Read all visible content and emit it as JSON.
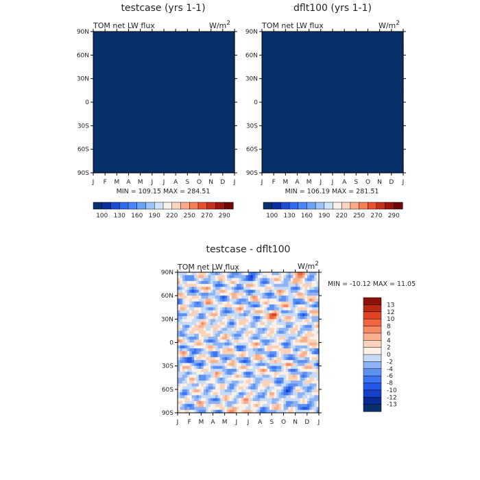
{
  "chart_data": [
    {
      "type": "heatmap",
      "title": "testcase (yrs 1-1)",
      "left_label": "TOM net LW flux",
      "units": "W/m",
      "units_exponent": "2",
      "x_ticks": [
        "J",
        "F",
        "M",
        "A",
        "M",
        "J",
        "J",
        "A",
        "S",
        "O",
        "N",
        "D",
        "J"
      ],
      "y_ticks": [
        "90N",
        "60N",
        "30N",
        "0",
        "30S",
        "60S",
        "90S"
      ],
      "xlim": [
        0,
        12
      ],
      "ylim": [
        -90,
        90
      ],
      "stats_text": "MIN = 109.15 MAX = 284.51",
      "min": 109.15,
      "max": 284.51,
      "levels": [
        100,
        115,
        130,
        145,
        160,
        175,
        190,
        205,
        220,
        235,
        250,
        265,
        270,
        285,
        290
      ],
      "colorbar_labels": [
        "100",
        "130",
        "160",
        "190",
        "220",
        "250",
        "270",
        "290"
      ],
      "colors": [
        "#08306b",
        "#0b2f9f",
        "#1d4cd3",
        "#2f6af0",
        "#4a86f5",
        "#6aa2f6",
        "#9cc3f7",
        "#cfe2fa",
        "#f7f0e8",
        "#fbd4bd",
        "#f9aa86",
        "#f47e55",
        "#e8512e",
        "#c6301c",
        "#9a1510",
        "#6d0a07"
      ]
    },
    {
      "type": "heatmap",
      "title": "dflt100 (yrs 1-1)",
      "left_label": "TOM net LW flux",
      "units": "W/m",
      "units_exponent": "2",
      "x_ticks": [
        "J",
        "F",
        "M",
        "A",
        "M",
        "J",
        "J",
        "A",
        "S",
        "O",
        "N",
        "D",
        "J"
      ],
      "y_ticks": [
        "90N",
        "60N",
        "30N",
        "0",
        "30S",
        "60S",
        "90S"
      ],
      "xlim": [
        0,
        12
      ],
      "ylim": [
        -90,
        90
      ],
      "stats_text": "MIN = 106.19 MAX = 281.51",
      "min": 106.19,
      "max": 281.51,
      "levels": [
        100,
        115,
        130,
        145,
        160,
        175,
        190,
        205,
        220,
        235,
        250,
        265,
        270,
        285,
        290
      ],
      "colorbar_labels": [
        "100",
        "130",
        "160",
        "190",
        "220",
        "250",
        "270",
        "290"
      ],
      "colors": [
        "#08306b",
        "#0b2f9f",
        "#1d4cd3",
        "#2f6af0",
        "#4a86f5",
        "#6aa2f6",
        "#9cc3f7",
        "#cfe2fa",
        "#f7f0e8",
        "#fbd4bd",
        "#f9aa86",
        "#f47e55",
        "#e8512e",
        "#c6301c",
        "#9a1510",
        "#6d0a07"
      ]
    },
    {
      "type": "heatmap",
      "title": "testcase - dflt100",
      "left_label": "TOM net LW flux",
      "units": "W/m",
      "units_exponent": "2",
      "x_ticks": [
        "J",
        "F",
        "M",
        "A",
        "M",
        "J",
        "J",
        "A",
        "S",
        "O",
        "N",
        "D",
        "J"
      ],
      "y_ticks": [
        "90N",
        "60N",
        "30N",
        "0",
        "30S",
        "60S",
        "90S"
      ],
      "xlim": [
        0,
        12
      ],
      "ylim": [
        -90,
        90
      ],
      "stats_text": "MIN = -10.12 MAX =  11.05",
      "min": -10.12,
      "max": 11.05,
      "levels": [
        -13,
        -12,
        -10,
        -8,
        -6,
        -4,
        -2,
        0,
        2,
        4,
        6,
        8,
        10,
        12,
        13
      ],
      "colorbar_labels": [
        "13",
        "12",
        "10",
        "8",
        "6",
        "4",
        "2",
        "0",
        "-2",
        "-4",
        "-6",
        "-8",
        "-10",
        "-12",
        "-13"
      ],
      "colors": [
        "#08306b",
        "#0a2a96",
        "#1440c8",
        "#2458e6",
        "#3c74f2",
        "#5d92f4",
        "#8fb4f6",
        "#c6dbf8",
        "#fbf1e6",
        "#fcd2ba",
        "#f9b08e",
        "#f58a64",
        "#ef6640",
        "#e04523",
        "#b92a14",
        "#8a1208"
      ]
    }
  ]
}
